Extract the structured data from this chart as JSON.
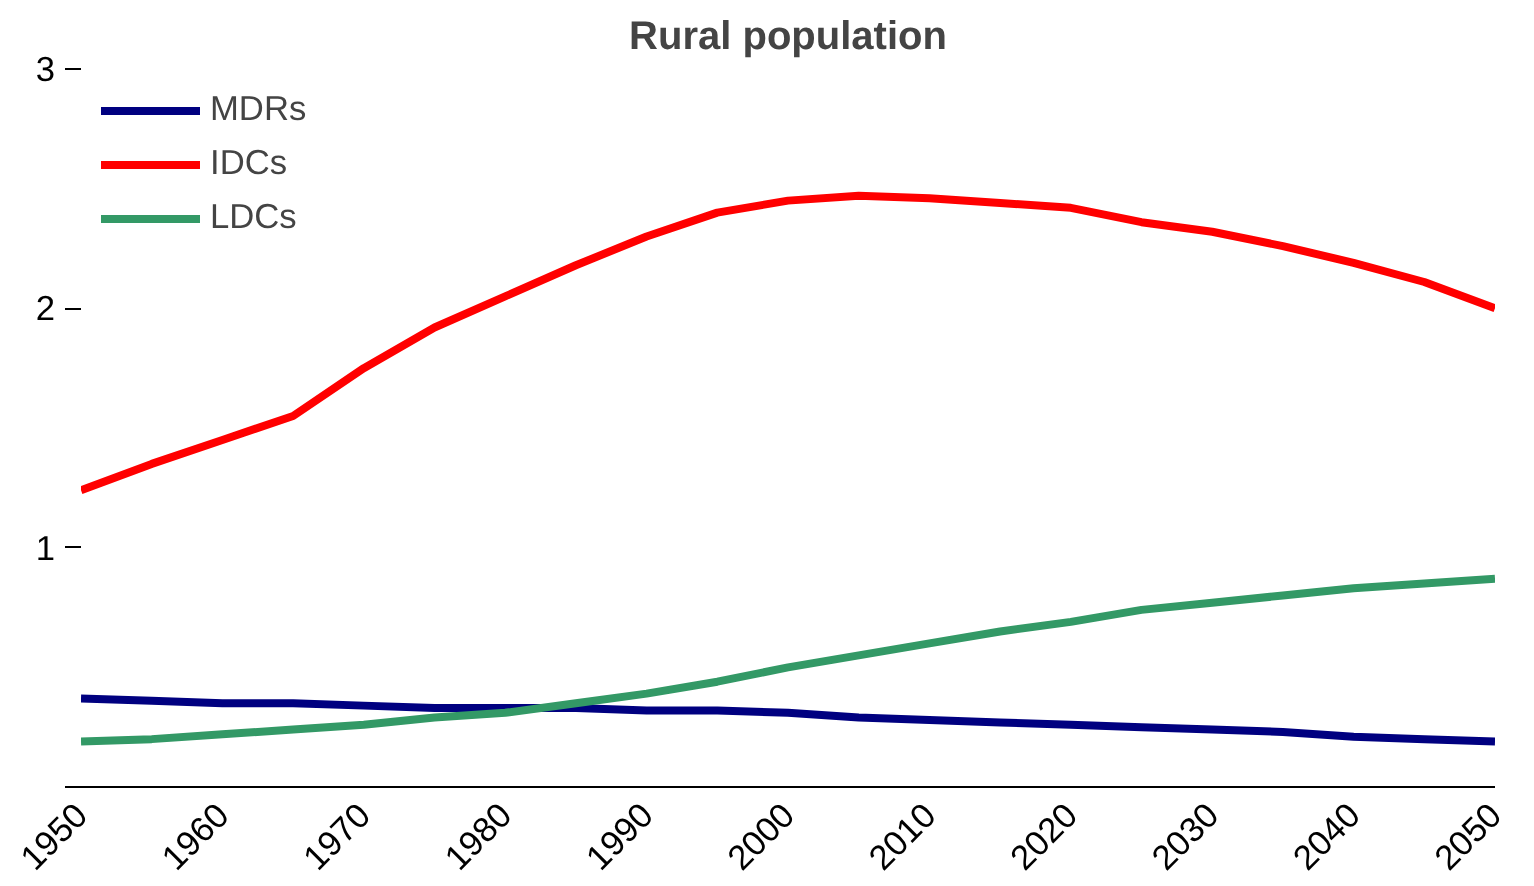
{
  "chart_data": {
    "type": "line",
    "title": "Rural population",
    "x": [
      1950,
      1955,
      1960,
      1965,
      1970,
      1975,
      1980,
      1985,
      1990,
      1995,
      2000,
      2005,
      2010,
      2015,
      2020,
      2025,
      2030,
      2035,
      2040,
      2045,
      2050
    ],
    "series": [
      {
        "name": "MDRs",
        "color": "#000080",
        "values": [
          0.37,
          0.36,
          0.35,
          0.35,
          0.34,
          0.33,
          0.33,
          0.33,
          0.32,
          0.32,
          0.31,
          0.29,
          0.28,
          0.27,
          0.26,
          0.25,
          0.24,
          0.23,
          0.21,
          0.2,
          0.19
        ]
      },
      {
        "name": "IDCs",
        "color": "#ff0000",
        "values": [
          1.24,
          1.35,
          1.45,
          1.55,
          1.75,
          1.92,
          2.05,
          2.18,
          2.3,
          2.4,
          2.45,
          2.47,
          2.46,
          2.44,
          2.42,
          2.36,
          2.32,
          2.26,
          2.19,
          2.11,
          2.0
        ]
      },
      {
        "name": "LDCs",
        "color": "#339966",
        "values": [
          0.19,
          0.2,
          0.22,
          0.24,
          0.26,
          0.29,
          0.31,
          0.35,
          0.39,
          0.44,
          0.5,
          0.55,
          0.6,
          0.65,
          0.69,
          0.74,
          0.77,
          0.8,
          0.83,
          0.85,
          0.87
        ]
      }
    ],
    "xlim": [
      1950,
      2050
    ],
    "xticks": [
      1950,
      1960,
      1970,
      1980,
      1990,
      2000,
      2010,
      2020,
      2030,
      2040,
      2050
    ],
    "ylim": [
      0,
      3
    ],
    "yticks": [
      {
        "value": 0,
        "label": null
      },
      1,
      2,
      3
    ],
    "grid": false,
    "legend": "top left",
    "line_style": "solid",
    "marker": "none"
  }
}
